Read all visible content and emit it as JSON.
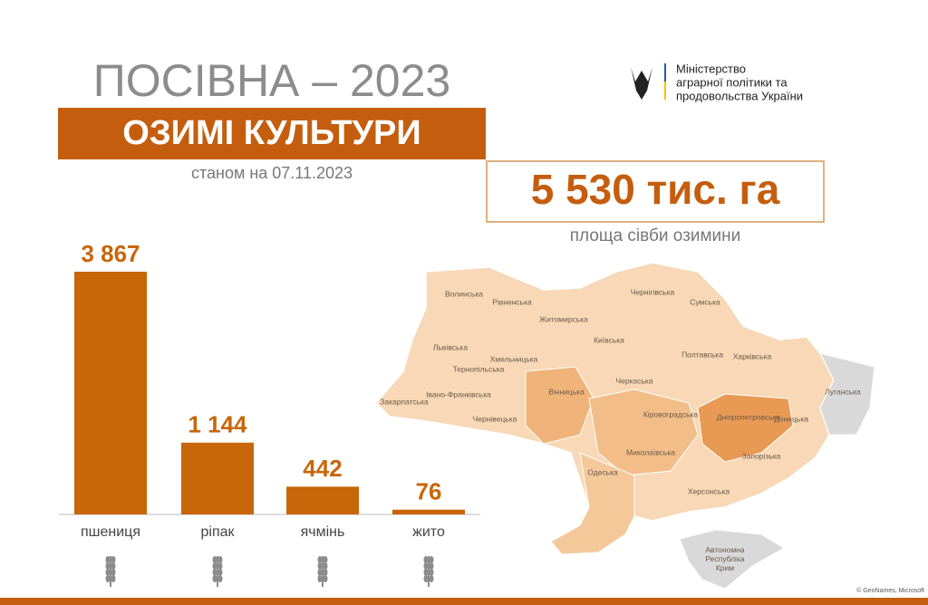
{
  "header": {
    "title": "ПОСІВНА – 2023",
    "subtitle": "ОЗИМІ КУЛЬТУРИ",
    "date": "станом на 07.11.2023",
    "total": "5 530 тис. га",
    "total_caption": "площа сівби озимини"
  },
  "ministry": {
    "lines": [
      "Міністерство",
      "аграрної політики та",
      "продовольства України"
    ]
  },
  "chart_data": {
    "type": "bar",
    "categories": [
      "пшениця",
      "ріпак",
      "ячмінь",
      "жито"
    ],
    "values": [
      3867,
      1144,
      442,
      76
    ],
    "value_labels": [
      "3 867",
      "1 144",
      "442",
      "76"
    ],
    "color": "#c8660a"
  },
  "map": {
    "regions": [
      "Волинська",
      "Рівненська",
      "Житомирська",
      "Чернігівська",
      "Сумська",
      "Київська",
      "Львівська",
      "Хмельницька",
      "Тернопільська",
      "Полтавська",
      "Харківська",
      "Черкаська",
      "Івано-Франківська",
      "Закарпатська",
      "Вінницька",
      "Чернівецька",
      "Кіровоградська",
      "Дніпропетровська",
      "Донецька",
      "Луганська",
      "Миколаївська",
      "Запорізька",
      "Одеська",
      "Херсонська",
      "Автономна Республіка Крим"
    ],
    "credit": "© GeoNames, Microsoft"
  }
}
